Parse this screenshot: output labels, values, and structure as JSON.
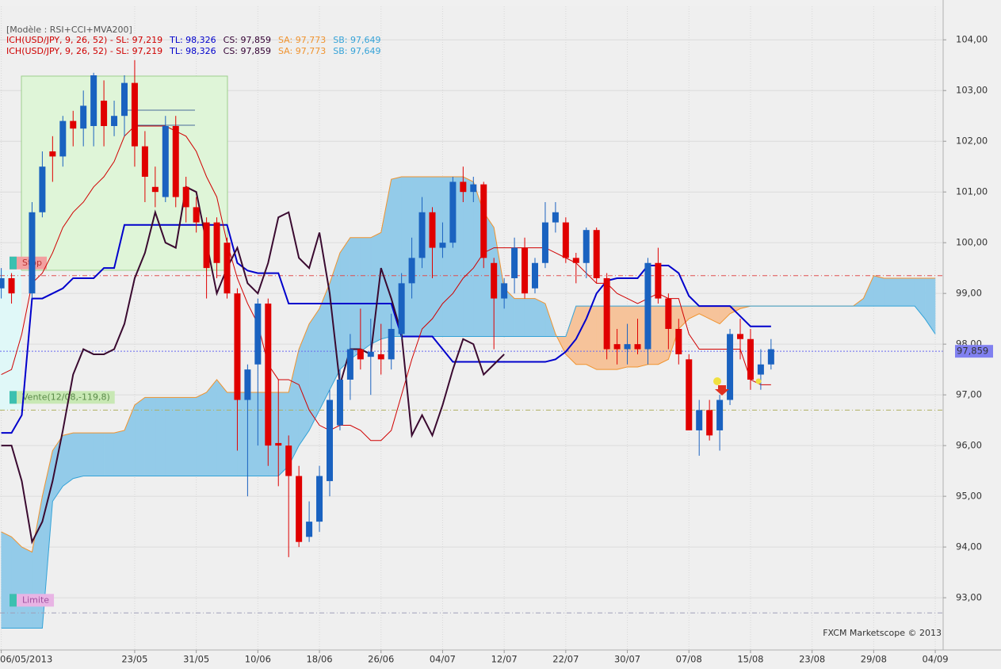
{
  "chart_data": {
    "type": "candlestick",
    "model": "[Modèle : RSI+CCI+MVA200]",
    "legend_lines": [
      [
        {
          "text": "ICH(USD/JPY, 9, 26, 52) -  SL: 97,219",
          "color": "#d00000"
        },
        {
          "text": "TL: 98,326",
          "color": "#0000cc"
        },
        {
          "text": "CS: 97,859",
          "color": "#330033"
        },
        {
          "text": "SA: 97,773",
          "color": "#f0932e"
        },
        {
          "text": "SB: 97,649",
          "color": "#35a3d8"
        }
      ],
      [
        {
          "text": "ICH(USD/JPY, 9, 26, 52) -  SL: 97,219",
          "color": "#d00000"
        },
        {
          "text": "TL: 98,326",
          "color": "#0000cc"
        },
        {
          "text": "CS: 97,859",
          "color": "#330033"
        },
        {
          "text": "SA: 97,773",
          "color": "#f0932e"
        },
        {
          "text": "SB: 97,649",
          "color": "#35a3d8"
        }
      ]
    ],
    "watermark": "FXCM Marketscope © 2013",
    "categories": [
      "06/05/2013",
      null,
      null,
      null,
      null,
      null,
      null,
      null,
      null,
      null,
      null,
      null,
      null,
      "23/05",
      null,
      null,
      null,
      null,
      null,
      "31/05",
      null,
      null,
      null,
      null,
      null,
      "10/06",
      null,
      null,
      null,
      null,
      null,
      "18/06",
      null,
      null,
      null,
      null,
      null,
      "26/06",
      null,
      null,
      null,
      null,
      null,
      "04/07",
      null,
      null,
      null,
      null,
      null,
      "12/07",
      null,
      null,
      null,
      null,
      null,
      "22/07",
      null,
      null,
      null,
      null,
      null,
      "30/07",
      null,
      null,
      null,
      null,
      null,
      "07/08",
      null,
      null,
      null,
      null,
      null,
      "15/08",
      null,
      null,
      null,
      null,
      null,
      "23/08",
      null,
      null,
      null,
      null,
      null,
      "29/08",
      null,
      null,
      null,
      null,
      null,
      "04/09"
    ],
    "up_color": "#1a62c0",
    "down_color": "#e00000",
    "open": [
      99.1,
      99.3,
      null,
      99.0,
      100.6,
      101.8,
      101.7,
      102.4,
      102.25,
      102.3,
      102.8,
      102.3,
      102.5,
      103.15,
      101.9,
      101.1,
      100.9,
      102.3,
      101.1,
      100.7,
      100.4,
      100.4,
      100.0,
      99.0,
      96.9,
      97.6,
      98.8,
      96.05,
      96.0,
      95.4,
      94.2,
      94.5,
      95.3,
      96.4,
      97.3,
      97.9,
      97.75,
      97.8,
      97.7,
      98.2,
      99.2,
      99.7,
      100.6,
      99.9,
      100.0,
      101.2,
      101.0,
      101.15,
      99.6,
      98.9,
      99.3,
      99.9,
      99.1,
      99.6,
      100.4,
      100.4,
      99.7,
      99.6,
      100.25,
      99.3,
      98.0,
      97.9,
      98.0,
      97.9,
      99.6,
      98.9,
      98.3,
      97.7,
      96.3,
      96.7,
      96.3,
      96.9,
      98.2,
      98.1,
      97.4,
      97.6,
      null,
      null,
      null,
      null,
      null,
      null,
      null,
      null,
      null,
      null,
      null,
      null,
      null,
      null,
      null,
      null
    ],
    "high": [
      99.5,
      99.4,
      null,
      100.8,
      101.8,
      102.1,
      102.5,
      102.6,
      103.0,
      103.35,
      103.2,
      102.8,
      103.3,
      103.6,
      102.2,
      101.5,
      102.5,
      102.5,
      101.3,
      100.9,
      100.5,
      100.5,
      100.1,
      99.1,
      97.6,
      98.9,
      98.9,
      97.3,
      96.2,
      95.6,
      94.9,
      95.6,
      97.1,
      97.5,
      98.2,
      98.7,
      98.5,
      98.4,
      98.6,
      99.4,
      100.1,
      100.9,
      100.7,
      100.4,
      101.3,
      101.5,
      101.3,
      101.2,
      99.7,
      99.3,
      100.1,
      100.1,
      99.7,
      100.8,
      100.8,
      100.5,
      99.8,
      100.3,
      100.3,
      99.4,
      98.3,
      98.4,
      98.5,
      99.7,
      99.9,
      99.0,
      98.5,
      97.8,
      96.9,
      96.9,
      97.0,
      98.3,
      98.5,
      98.3,
      97.9,
      98.1,
      null,
      null,
      null,
      null,
      null,
      null,
      null,
      null,
      null,
      null,
      null,
      null,
      null,
      null,
      null,
      null
    ],
    "low": [
      98.9,
      98.8,
      null,
      98.9,
      100.5,
      101.2,
      101.5,
      101.9,
      101.9,
      101.9,
      101.9,
      102.1,
      102.1,
      101.5,
      100.8,
      100.7,
      100.8,
      100.7,
      100.4,
      100.2,
      98.9,
      99.3,
      98.9,
      95.9,
      95.0,
      96.0,
      95.6,
      95.2,
      93.8,
      94.0,
      94.1,
      94.3,
      95.0,
      96.3,
      96.9,
      97.5,
      97.0,
      97.4,
      97.5,
      98.1,
      98.9,
      99.5,
      99.3,
      99.7,
      99.9,
      100.8,
      100.8,
      99.5,
      97.9,
      98.7,
      99.0,
      98.9,
      99.0,
      99.5,
      100.2,
      99.6,
      99.2,
      99.3,
      99.2,
      97.7,
      97.6,
      97.6,
      97.8,
      97.6,
      98.8,
      97.9,
      97.6,
      96.3,
      95.8,
      96.1,
      95.9,
      96.8,
      97.7,
      97.1,
      97.1,
      97.5,
      null,
      null,
      null,
      null,
      null,
      null,
      null,
      null,
      null,
      null,
      null,
      null,
      null,
      null,
      null,
      null
    ],
    "close": [
      99.3,
      99.0,
      null,
      100.6,
      101.5,
      101.7,
      102.4,
      102.25,
      102.7,
      103.3,
      102.3,
      102.5,
      103.15,
      101.9,
      101.3,
      101.0,
      102.3,
      100.9,
      100.7,
      100.4,
      99.5,
      99.6,
      99.0,
      96.9,
      97.5,
      98.8,
      96.0,
      96.0,
      95.4,
      94.1,
      94.5,
      95.4,
      96.9,
      97.3,
      97.9,
      97.7,
      97.85,
      97.7,
      98.3,
      99.2,
      99.7,
      100.6,
      99.9,
      100.0,
      101.2,
      101.0,
      101.15,
      99.7,
      98.9,
      99.2,
      99.9,
      99.0,
      99.6,
      100.4,
      100.6,
      99.7,
      99.6,
      100.25,
      99.3,
      97.9,
      97.9,
      98.0,
      97.9,
      99.6,
      98.9,
      98.3,
      97.8,
      96.3,
      96.7,
      96.2,
      96.9,
      98.2,
      98.1,
      97.3,
      97.6,
      97.9,
      null,
      null,
      null,
      null,
      null,
      null,
      null,
      null,
      null,
      null,
      null,
      null,
      null,
      null,
      null,
      null
    ],
    "cloud": {
      "up_fill": "#93cbe9",
      "down_fill": "#f6c39a",
      "series": [
        {
          "name": "SA",
          "color": "#f0932e",
          "values": [
            94.3,
            94.2,
            94.0,
            93.9,
            95.0,
            95.9,
            96.2,
            96.25,
            96.25,
            96.25,
            96.25,
            96.25,
            96.3,
            96.8,
            96.95,
            96.95,
            96.95,
            96.95,
            96.95,
            96.95,
            97.05,
            97.3,
            97.05,
            97.05,
            97.05,
            97.05,
            97.05,
            97.05,
            97.05,
            97.9,
            98.4,
            98.7,
            99.2,
            99.8,
            100.1,
            100.1,
            100.1,
            100.2,
            101.25,
            101.3,
            101.3,
            101.3,
            101.3,
            101.3,
            101.3,
            101.3,
            101.2,
            100.6,
            100.3,
            99.1,
            98.9,
            98.9,
            98.9,
            98.8,
            98.2,
            97.8,
            97.6,
            97.6,
            97.5,
            97.5,
            97.5,
            97.55,
            97.55,
            97.6,
            97.6,
            97.7,
            98.3,
            98.5,
            98.6,
            98.5,
            98.4,
            98.6,
            98.7,
            98.75,
            98.75,
            98.75,
            98.75,
            98.75,
            98.75,
            98.75,
            98.75,
            98.75,
            98.75,
            98.75,
            98.9,
            99.35,
            99.3,
            99.3,
            99.3,
            99.3,
            99.3,
            99.3
          ]
        },
        {
          "name": "SB",
          "color": "#35a3d8",
          "values": [
            92.4,
            92.4,
            92.4,
            92.4,
            92.4,
            94.9,
            95.2,
            95.35,
            95.4,
            95.4,
            95.4,
            95.4,
            95.4,
            95.4,
            95.4,
            95.4,
            95.4,
            95.4,
            95.4,
            95.4,
            95.4,
            95.4,
            95.4,
            95.4,
            95.4,
            95.4,
            95.4,
            95.4,
            95.6,
            96.0,
            96.3,
            96.7,
            97.1,
            97.5,
            97.7,
            97.85,
            98.0,
            98.1,
            98.15,
            98.15,
            98.15,
            98.15,
            98.15,
            98.15,
            98.15,
            98.15,
            98.15,
            98.15,
            98.15,
            98.15,
            98.15,
            98.15,
            98.15,
            98.15,
            98.15,
            98.15,
            98.75,
            98.75,
            98.75,
            98.75,
            98.75,
            98.75,
            98.75,
            98.75,
            98.75,
            98.75,
            98.75,
            98.75,
            98.75,
            98.75,
            98.75,
            98.75,
            98.75,
            98.75,
            98.75,
            98.75,
            98.75,
            98.75,
            98.75,
            98.75,
            98.75,
            98.75,
            98.75,
            98.75,
            98.75,
            98.75,
            98.75,
            98.75,
            98.75,
            98.75,
            98.5,
            98.2
          ]
        }
      ]
    },
    "series": [
      {
        "name": "TL",
        "color": "#0000cc",
        "width": 2,
        "values": [
          96.25,
          96.25,
          96.6,
          98.9,
          98.9,
          99.0,
          99.1,
          99.3,
          99.3,
          99.3,
          99.5,
          99.5,
          100.35,
          100.35,
          100.35,
          100.35,
          100.35,
          100.35,
          100.35,
          100.35,
          100.35,
          100.35,
          100.35,
          99.6,
          99.45,
          99.4,
          99.4,
          99.4,
          98.8,
          98.8,
          98.8,
          98.8,
          98.8,
          98.8,
          98.8,
          98.8,
          98.8,
          98.8,
          98.8,
          98.15,
          98.15,
          98.15,
          98.15,
          97.9,
          97.65,
          97.65,
          97.65,
          97.65,
          97.65,
          97.65,
          97.65,
          97.65,
          97.65,
          97.65,
          97.7,
          97.85,
          98.1,
          98.5,
          99.0,
          99.25,
          99.3,
          99.3,
          99.3,
          99.55,
          99.55,
          99.55,
          99.4,
          98.95,
          98.75,
          98.75,
          98.75,
          98.75,
          98.55,
          98.35,
          98.35,
          98.35,
          null,
          null,
          null,
          null,
          null,
          null,
          null,
          null,
          null,
          null,
          null,
          null,
          null,
          null,
          null,
          null
        ]
      },
      {
        "name": "SL",
        "color": "#d00000",
        "width": 1,
        "values": [
          97.4,
          97.5,
          98.2,
          99.2,
          99.4,
          99.8,
          100.3,
          100.6,
          100.8,
          101.1,
          101.3,
          101.6,
          102.1,
          102.3,
          102.3,
          102.3,
          102.3,
          102.2,
          102.1,
          101.8,
          101.3,
          100.9,
          100.0,
          99.3,
          98.8,
          98.4,
          97.6,
          97.3,
          97.3,
          97.2,
          96.7,
          96.4,
          96.3,
          96.4,
          96.4,
          96.3,
          96.1,
          96.1,
          96.3,
          97.0,
          97.7,
          98.3,
          98.5,
          98.8,
          99.0,
          99.3,
          99.5,
          99.8,
          99.9,
          99.9,
          99.9,
          99.9,
          99.9,
          99.9,
          99.8,
          99.7,
          99.6,
          99.4,
          99.2,
          99.2,
          99.0,
          98.9,
          98.8,
          98.9,
          99.0,
          98.9,
          98.9,
          98.2,
          97.9,
          97.9,
          97.9,
          97.9,
          97.9,
          97.3,
          97.2,
          97.2,
          null,
          null,
          null,
          null,
          null,
          null,
          null,
          null,
          null,
          null,
          null,
          null,
          null,
          null,
          null,
          null
        ]
      },
      {
        "name": "CS",
        "color": "#3a0a30",
        "width": 2,
        "values": [
          96.0,
          96.0,
          95.3,
          94.1,
          94.5,
          95.3,
          96.3,
          97.4,
          97.9,
          97.8,
          97.8,
          97.9,
          98.4,
          99.3,
          99.8,
          100.6,
          100.0,
          99.9,
          101.1,
          101.0,
          100.0,
          99.0,
          99.5,
          99.9,
          99.2,
          99.0,
          99.6,
          100.5,
          100.6,
          99.7,
          99.5,
          100.2,
          99.0,
          97.2,
          97.9,
          97.9,
          97.8,
          99.5,
          98.9,
          98.2,
          96.2,
          96.6,
          96.2,
          96.8,
          97.5,
          98.1,
          98.0,
          97.4,
          97.6,
          97.8,
          null,
          null,
          null,
          null,
          null,
          null,
          null,
          null,
          null,
          null,
          null,
          null,
          null,
          null,
          null,
          null,
          null,
          null,
          null,
          null,
          null,
          null,
          null,
          null,
          null,
          null,
          null,
          null,
          null,
          null,
          null,
          null,
          null,
          null,
          null,
          null,
          null,
          null,
          null,
          null,
          null,
          null
        ]
      }
    ],
    "levels": [
      {
        "value": 99.35,
        "label": "Stop",
        "color": "#e05050",
        "box": "#f2a0a0",
        "text_color": "#b83030",
        "place": "left"
      },
      {
        "value": 96.7,
        "label": "Vente(12/08,-119,8)",
        "color": "#b0b060",
        "box": "#c8e8b4",
        "text_color": "#5a8a48",
        "place": "left"
      },
      {
        "value": 92.7,
        "label": "Limite",
        "color": "#a0a0b8",
        "box": "#e8b4e4",
        "text_color": "#a050a0",
        "place": "left"
      },
      {
        "value": 97.859,
        "label": "97,859",
        "color": "#6a6af0",
        "box": "#8080f0",
        "text_color": "#ffffff",
        "place": "axis"
      }
    ],
    "ylim": [
      91.97,
      104.66
    ],
    "yticks": [
      {
        "value": 93,
        "label": "93,00"
      },
      {
        "value": 94,
        "label": "94,00"
      },
      {
        "value": 95,
        "label": "95,00"
      },
      {
        "value": 96,
        "label": "96,00"
      },
      {
        "value": 97,
        "label": "97,00"
      },
      {
        "value": 98,
        "label": "98,00"
      },
      {
        "value": 99,
        "label": "99,00"
      },
      {
        "value": 100,
        "label": "100,00"
      },
      {
        "value": 101,
        "label": "101,00"
      },
      {
        "value": 102,
        "label": "102,00"
      },
      {
        "value": 103,
        "label": "103,00"
      },
      {
        "value": 104,
        "label": "104,00"
      }
    ],
    "grid": true
  }
}
